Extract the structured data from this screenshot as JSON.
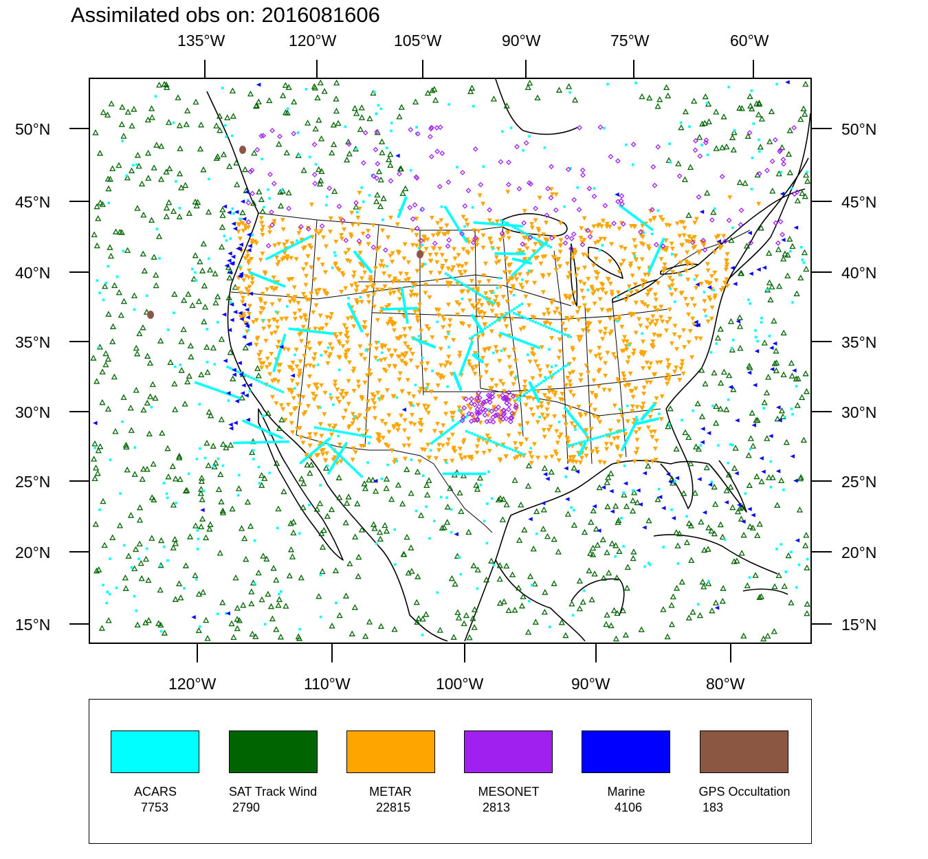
{
  "title": "Assimilated obs on: 2016081606",
  "top_lon_labels": [
    "135°W",
    "120°W",
    "105°W",
    "90°W",
    "75°W",
    "60°W"
  ],
  "bottom_lon_labels": [
    "120°W",
    "110°W",
    "100°W",
    "90°W",
    "80°W"
  ],
  "lat_labels": [
    "50°N",
    "45°N",
    "40°N",
    "35°N",
    "30°N",
    "25°N",
    "20°N",
    "15°N"
  ],
  "legend": [
    {
      "name": "ACARS",
      "count": "7753",
      "color": "#00ffff",
      "marker": "dot"
    },
    {
      "name": "SAT Track Wind",
      "count": "2790",
      "color": "#006400",
      "marker": "triangle-up"
    },
    {
      "name": "METAR",
      "count": "22815",
      "color": "#ffa500",
      "marker": "triangle-down"
    },
    {
      "name": "MESONET",
      "count": "2813",
      "color": "#a020f0",
      "marker": "diamond"
    },
    {
      "name": "Marine",
      "count": "4106",
      "color": "#0000ff",
      "marker": "triangle-left"
    },
    {
      "name": "GPS Occultation",
      "count": "183",
      "color": "#8b5742",
      "marker": "blob"
    }
  ],
  "map_style": {
    "projection": "lambert-conformal",
    "lon_range": [
      "130°W",
      "58°W"
    ],
    "lat_range": [
      "14°N",
      "54°N"
    ],
    "coastline_color": "#000000",
    "background": "#ffffff"
  }
}
